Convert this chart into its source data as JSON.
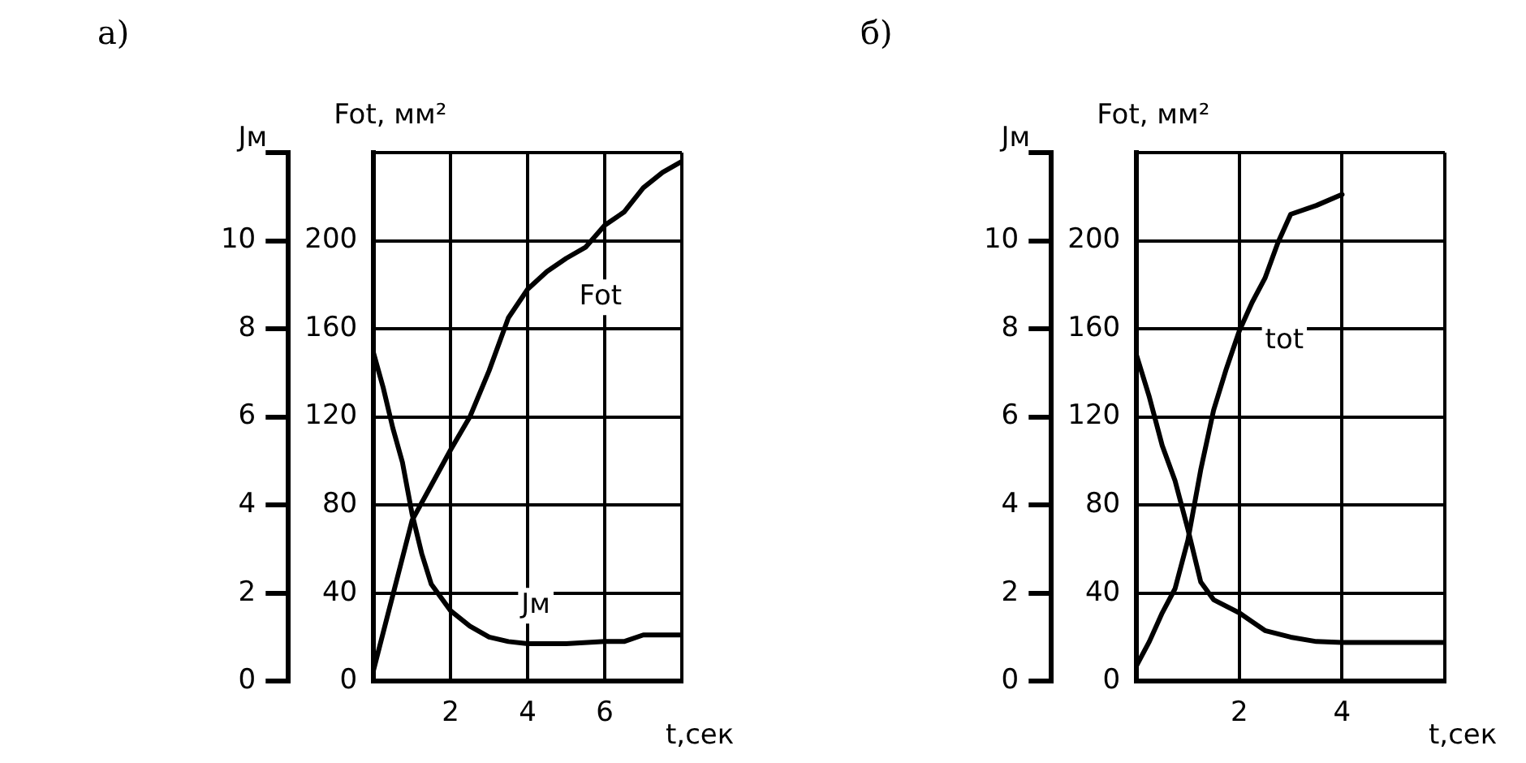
{
  "chart_data": [
    {
      "type": "line",
      "title": "а)",
      "xlabel": "t,сек",
      "ylabel": "Jм",
      "y2label": "Fot, мм²",
      "xlim": [
        0,
        8
      ],
      "xticks": [
        {
          "value": 0,
          "label": null
        },
        2,
        4,
        6,
        {
          "value": 8,
          "label": null
        }
      ],
      "ylim": [
        0,
        12
      ],
      "yticks": [
        0,
        2,
        4,
        6,
        8,
        10,
        {
          "value": 12,
          "label": null
        }
      ],
      "y2lim": [
        0,
        240
      ],
      "y2ticks": [
        0,
        40,
        80,
        120,
        160,
        200,
        {
          "value": 240,
          "label": null
        }
      ],
      "grid": true,
      "legend": false,
      "marker": "none",
      "line_style": "solid",
      "series": [
        {
          "name": "Fot",
          "color": "#000000",
          "axis": "y2",
          "x": [
            0,
            0.5,
            1,
            1.5,
            2,
            2.5,
            3,
            3.5,
            4,
            4.5,
            5,
            5.5,
            6,
            6.5,
            7,
            7.5,
            8
          ],
          "values": [
            5,
            39,
            73,
            89,
            105,
            120,
            141,
            165,
            178,
            186,
            192,
            197,
            207,
            213,
            224,
            231,
            236
          ]
        },
        {
          "name": "Jм",
          "color": "#000000",
          "x": [
            0,
            0.25,
            0.5,
            0.75,
            1,
            1.25,
            1.5,
            2,
            2.5,
            3,
            3.5,
            4,
            5,
            6,
            6.5,
            7,
            8
          ],
          "values": [
            7.45,
            6.67,
            5.75,
            4.97,
            3.8,
            2.9,
            2.2,
            1.6,
            1.25,
            1.0,
            0.9,
            0.85,
            0.85,
            0.9,
            0.9,
            1.05,
            1.05
          ]
        }
      ]
    },
    {
      "type": "line",
      "title": "б)",
      "xlabel": "t,сек",
      "ylabel": "Jм",
      "y2label": "Fot, мм²",
      "xlim": [
        0,
        6
      ],
      "xticks": [
        {
          "value": 0,
          "label": null
        },
        2,
        4,
        {
          "value": 6,
          "label": null
        }
      ],
      "ylim": [
        0,
        12
      ],
      "yticks": [
        0,
        2,
        4,
        6,
        8,
        10,
        {
          "value": 12,
          "label": null
        }
      ],
      "y2lim": [
        0,
        240
      ],
      "y2ticks": [
        0,
        40,
        80,
        120,
        160,
        200,
        {
          "value": 240,
          "label": null
        }
      ],
      "grid": true,
      "legend": false,
      "marker": "none",
      "line_style": "solid",
      "series": [
        {
          "name": "tot",
          "color": "#000000",
          "axis": "y2",
          "x": [
            0,
            0.25,
            0.5,
            0.75,
            1,
            1.25,
            1.5,
            1.75,
            2,
            2.25,
            2.5,
            2.75,
            3,
            3.5,
            4
          ],
          "values": [
            7,
            18,
            31,
            42,
            64,
            96,
            123,
            142,
            159,
            172,
            183,
            199,
            212,
            216,
            221
          ]
        },
        {
          "color": "#000000",
          "x": [
            0,
            0.25,
            0.5,
            0.75,
            1,
            1.25,
            1.5,
            2,
            2.5,
            3,
            3.5,
            4,
            5,
            6
          ],
          "values": [
            7.4,
            6.45,
            5.35,
            4.55,
            3.45,
            2.25,
            1.85,
            1.55,
            1.15,
            1.0,
            0.9,
            0.88,
            0.88,
            0.88
          ]
        }
      ]
    }
  ]
}
